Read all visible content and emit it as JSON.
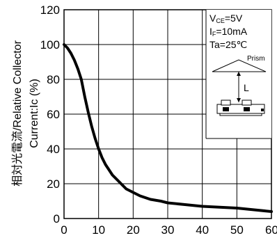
{
  "chart_data": {
    "type": "line",
    "title": "",
    "ylabel_line1": "相対光電流/Relative Collector",
    "ylabel_line2": "Current:Ic (%)",
    "xlabel": "",
    "xlim": [
      0,
      60
    ],
    "ylim": [
      0,
      120
    ],
    "xticks": [
      0,
      10,
      20,
      30,
      40,
      50,
      60
    ],
    "yticks": [
      0,
      20,
      40,
      60,
      80,
      100,
      120
    ],
    "xtick_labels": [
      "0",
      "10",
      "20",
      "30",
      "40",
      "50",
      "60"
    ],
    "ytick_labels": [
      "0",
      "20",
      "40",
      "60",
      "80",
      "100",
      "120"
    ],
    "grid": true,
    "series": [
      {
        "name": "",
        "x": [
          0,
          1,
          2,
          3,
          4,
          5,
          6,
          7,
          8,
          9,
          10,
          11,
          12,
          13,
          14,
          15,
          16,
          17,
          18,
          19,
          20,
          22,
          25,
          28,
          30,
          35,
          40,
          45,
          50,
          55,
          60
        ],
        "y": [
          100,
          98,
          95,
          91,
          86,
          80,
          70,
          61,
          53,
          46,
          40,
          35,
          31,
          28,
          25,
          23,
          21,
          19,
          17,
          16,
          15,
          13,
          11,
          10,
          9,
          8,
          7,
          6.5,
          6,
          5,
          4
        ]
      }
    ],
    "annotations": {
      "conditions": [
        "V|CE|=5V",
        "I|F|=10mA",
        "Ta=25℃"
      ],
      "inset_prism_label": "Prism",
      "inset_distance_label": "L"
    }
  }
}
